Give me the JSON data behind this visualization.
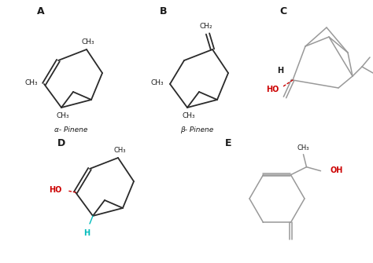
{
  "bg_color": "#ffffff",
  "text_color": "#1a1a1a",
  "bond_color": "#2a2a2a",
  "gray_color": "#999999",
  "red_color": "#cc0000",
  "cyan_color": "#00bbbb",
  "label_A": "A",
  "label_B": "B",
  "label_C": "C",
  "label_D": "D",
  "label_E": "E",
  "name_A": "α- Pinene",
  "name_B": "β- Pinene",
  "figsize": [
    4.74,
    3.35
  ],
  "dpi": 100
}
